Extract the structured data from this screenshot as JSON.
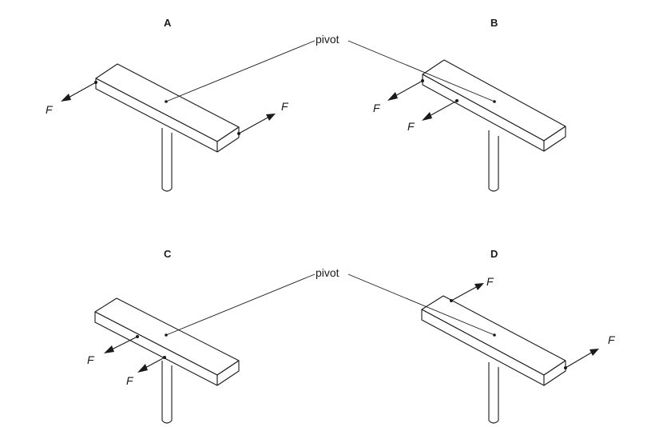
{
  "diagram": {
    "panels": [
      {
        "label": "A",
        "forces": [
          "F",
          "F"
        ]
      },
      {
        "label": "B",
        "forces": [
          "F",
          "F"
        ]
      },
      {
        "label": "C",
        "forces": [
          "F",
          "F"
        ]
      },
      {
        "label": "D",
        "forces": [
          "F",
          "F"
        ]
      }
    ],
    "pivot_top": "pivot",
    "pivot_bottom": "pivot"
  }
}
